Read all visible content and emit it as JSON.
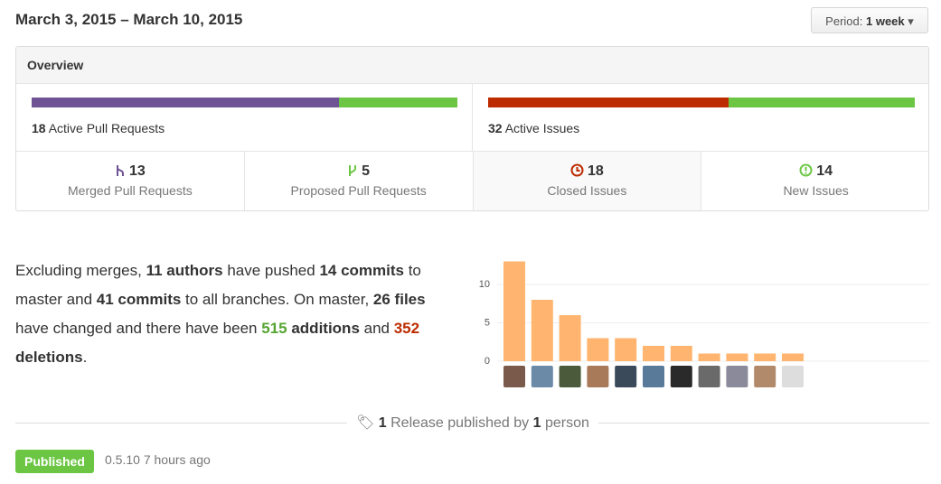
{
  "header": {
    "date_range": "March 3, 2015 – March 10, 2015",
    "period_label": "Period:",
    "period_value": "1 week"
  },
  "overview": {
    "title": "Overview",
    "pull_requests": {
      "active": 18,
      "active_label": "Active Pull Requests",
      "merged": 13,
      "merged_label": "Merged Pull Requests",
      "proposed": 5,
      "proposed_label": "Proposed Pull Requests",
      "colors": [
        "#6e5494",
        "#6cc644"
      ]
    },
    "issues": {
      "active": 32,
      "active_label": "Active Issues",
      "closed": 18,
      "closed_label": "Closed Issues",
      "new": 14,
      "new_label": "New Issues",
      "colors": [
        "#bd2c00",
        "#6cc644"
      ]
    }
  },
  "summary": [
    "Excluding merges, ",
    "11 authors",
    " have pushed ",
    "14 commits",
    " to master and ",
    "41 commits",
    " to all branches. On master, ",
    "26 files",
    " have changed and there have been ",
    "515",
    " ",
    "additions",
    " and ",
    "352",
    " ",
    "deletions",
    "."
  ],
  "chart_data": {
    "type": "bar",
    "categories": [
      null,
      null,
      null,
      null,
      null,
      null,
      null,
      null,
      null,
      null,
      null
    ],
    "values": [
      13,
      8,
      6,
      3,
      3,
      2,
      2,
      1,
      1,
      1,
      1
    ],
    "color": "#ffb56f",
    "ylim": [
      0,
      13
    ],
    "yticks": [
      0,
      5,
      10
    ],
    "grid": true
  },
  "releases": {
    "count": 1,
    "text_mid": "Release published by",
    "people": 1,
    "text_end": "person",
    "items": [
      {
        "badge": "Published",
        "tag": "0.5.10",
        "time": "7 hours ago"
      }
    ]
  }
}
